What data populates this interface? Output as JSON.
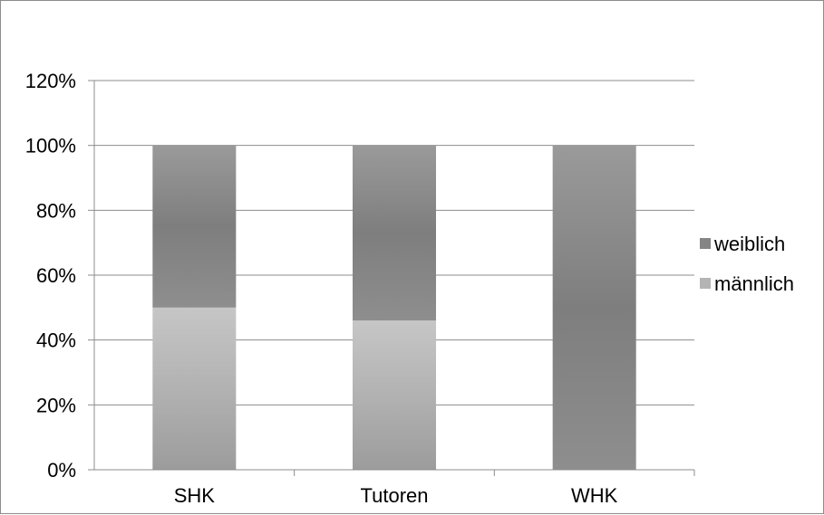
{
  "chart_data": {
    "type": "bar",
    "stacked": true,
    "normalized": true,
    "categories": [
      "SHK",
      "Tutoren",
      "WHK"
    ],
    "series": [
      {
        "name": "männlich",
        "values": [
          50,
          46,
          0
        ],
        "color": "#b4b4b4"
      },
      {
        "name": "weiblich",
        "values": [
          50,
          54,
          100
        ],
        "color": "#858585"
      }
    ],
    "ylim": [
      0,
      120
    ],
    "yticks": [
      0,
      20,
      40,
      60,
      80,
      100,
      120
    ],
    "ytick_labels": [
      "0%",
      "20%",
      "40%",
      "60%",
      "80%",
      "100%",
      "120%"
    ],
    "grid": true,
    "legend": {
      "position": "right",
      "entries": [
        "weiblich",
        "männlich"
      ]
    }
  }
}
